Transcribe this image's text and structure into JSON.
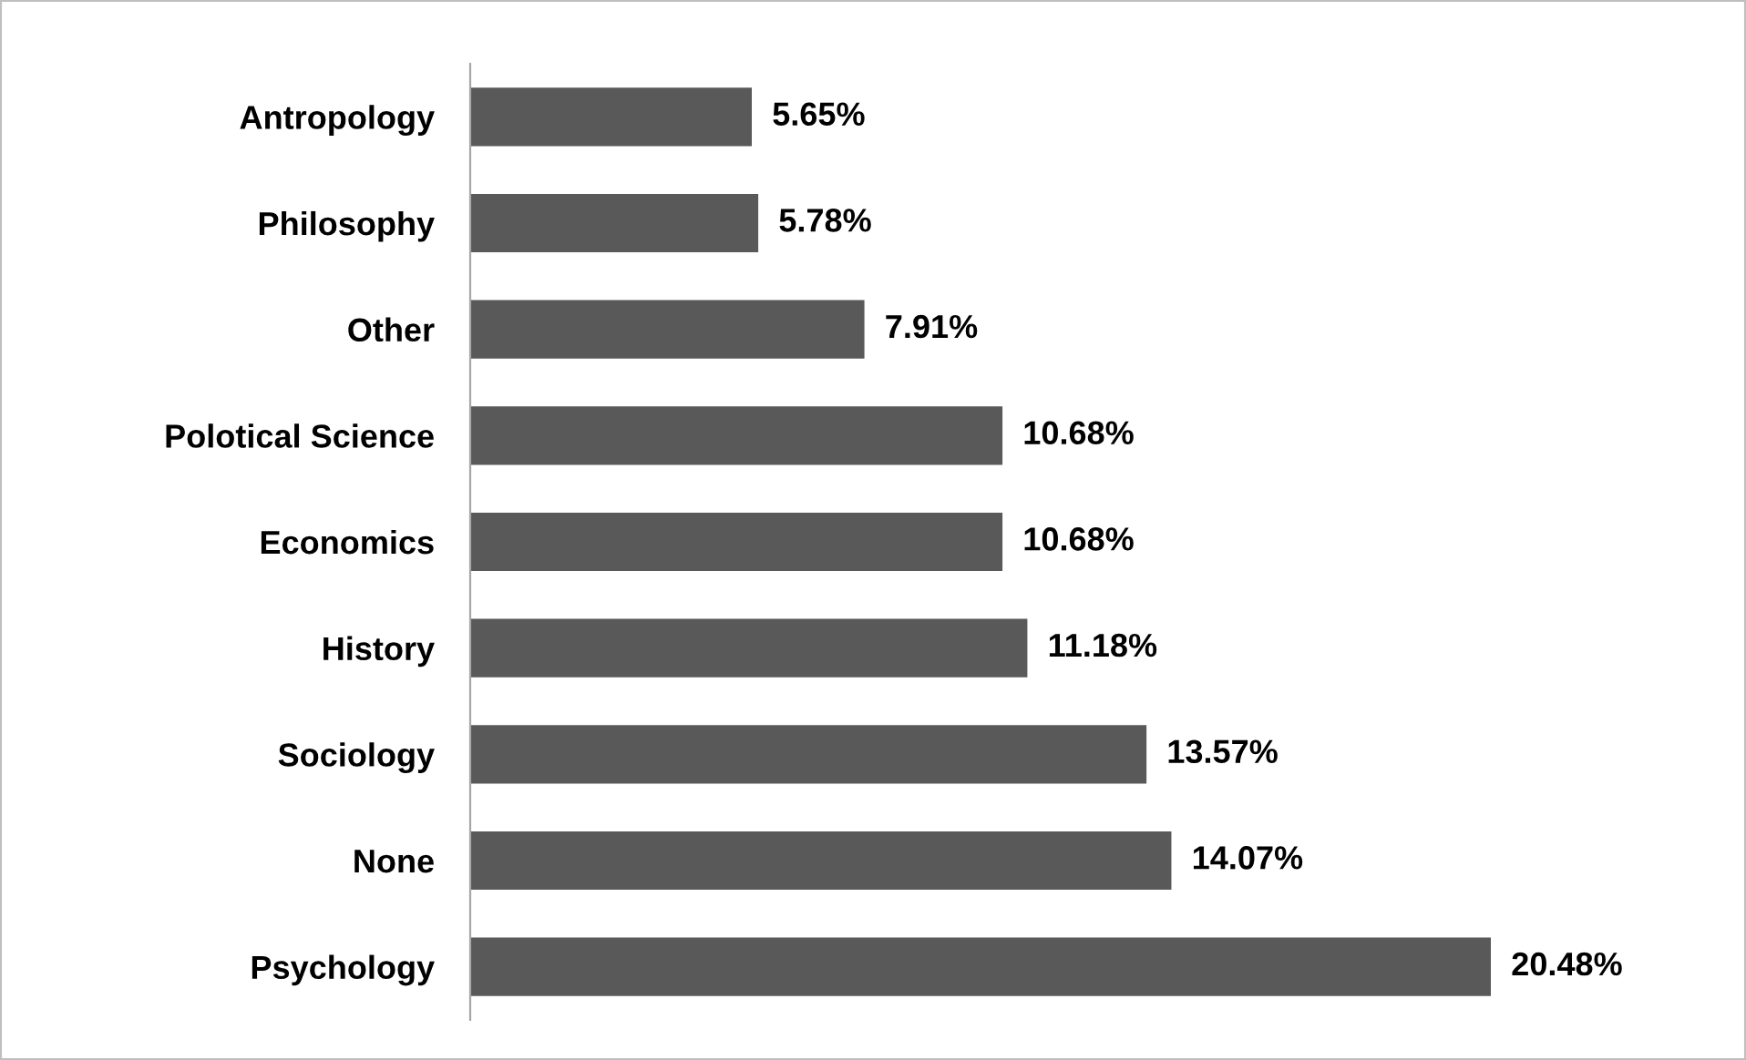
{
  "chart_data": {
    "type": "bar",
    "orientation": "horizontal",
    "categories": [
      "Antropology",
      "Philosophy",
      "Other",
      "Polotical Science",
      "Economics",
      "History",
      "Sociology",
      "None",
      "Psychology"
    ],
    "values": [
      5.65,
      5.78,
      7.91,
      10.68,
      10.68,
      11.18,
      13.57,
      14.07,
      20.48
    ],
    "value_labels": [
      "5.65%",
      "5.78%",
      "7.91%",
      "10.68%",
      "10.68%",
      "11.18%",
      "13.57%",
      "14.07%",
      "20.48%"
    ],
    "color": "#595959",
    "grid": false,
    "legend": false,
    "tick_labels": "y"
  }
}
